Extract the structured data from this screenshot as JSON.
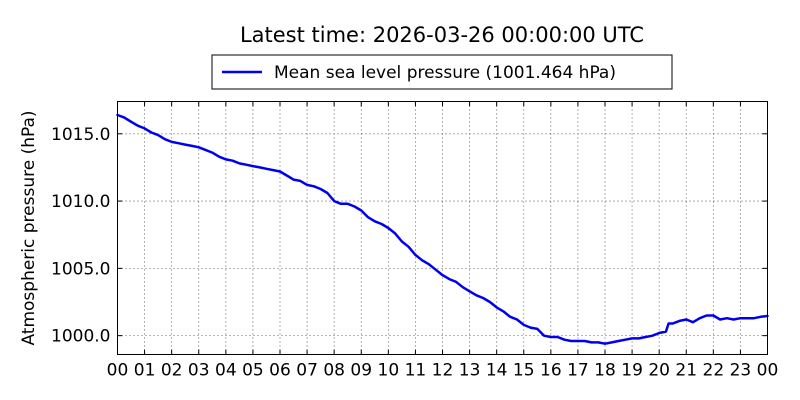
{
  "chart_data": {
    "type": "line",
    "title": "Latest time: 2026-03-26 00:00:00 UTC",
    "ylabel": "Atmospheric pressure (hPa)",
    "xlabel": "",
    "xlim": [
      0,
      24
    ],
    "ylim": [
      998.6,
      1017.4
    ],
    "grid": true,
    "legend_position": "top-center",
    "x_ticks": [
      0,
      1,
      2,
      3,
      4,
      5,
      6,
      7,
      8,
      9,
      10,
      11,
      12,
      13,
      14,
      15,
      16,
      17,
      18,
      19,
      20,
      21,
      22,
      23,
      24
    ],
    "x_tick_labels": [
      "00",
      "01",
      "02",
      "03",
      "04",
      "05",
      "06",
      "07",
      "08",
      "09",
      "10",
      "11",
      "12",
      "13",
      "14",
      "15",
      "16",
      "17",
      "18",
      "19",
      "20",
      "21",
      "22",
      "23",
      "00"
    ],
    "y_ticks": [
      1000.0,
      1005.0,
      1010.0,
      1015.0
    ],
    "y_tick_labels": [
      "1000.0",
      "1005.0",
      "1010.0",
      "1015.0"
    ],
    "series": [
      {
        "name": "Mean sea level pressure (1001.464 hPa)",
        "color": "#0000ee",
        "x": [
          0,
          0.25,
          0.5,
          0.75,
          1,
          1.25,
          1.5,
          1.75,
          2,
          2.25,
          2.5,
          2.75,
          3,
          3.25,
          3.5,
          3.75,
          4,
          4.25,
          4.5,
          4.75,
          5,
          5.25,
          5.5,
          5.75,
          6,
          6.25,
          6.5,
          6.75,
          7,
          7.25,
          7.5,
          7.75,
          8,
          8.25,
          8.5,
          8.75,
          9,
          9.25,
          9.5,
          9.75,
          10,
          10.25,
          10.5,
          10.75,
          11,
          11.25,
          11.5,
          11.75,
          12,
          12.25,
          12.5,
          12.75,
          13,
          13.25,
          13.5,
          13.75,
          14,
          14.25,
          14.5,
          14.75,
          15,
          15.25,
          15.5,
          15.75,
          16,
          16.25,
          16.5,
          16.75,
          17,
          17.25,
          17.5,
          17.75,
          18,
          18.25,
          18.5,
          18.75,
          19,
          19.25,
          19.5,
          19.75,
          20,
          20.25,
          20.35,
          20.5,
          20.75,
          21,
          21.25,
          21.5,
          21.75,
          22,
          22.25,
          22.5,
          22.75,
          23,
          23.25,
          23.5,
          23.75,
          24
        ],
        "y": [
          1016.4,
          1016.2,
          1015.9,
          1015.6,
          1015.4,
          1015.1,
          1014.9,
          1014.6,
          1014.4,
          1014.3,
          1014.2,
          1014.1,
          1014.0,
          1013.8,
          1013.6,
          1013.3,
          1013.1,
          1013.0,
          1012.8,
          1012.7,
          1012.6,
          1012.5,
          1012.4,
          1012.3,
          1012.2,
          1011.9,
          1011.6,
          1011.5,
          1011.2,
          1011.1,
          1010.9,
          1010.6,
          1010.0,
          1009.8,
          1009.8,
          1009.6,
          1009.3,
          1008.8,
          1008.5,
          1008.3,
          1008.0,
          1007.6,
          1007.0,
          1006.6,
          1006.0,
          1005.6,
          1005.3,
          1004.9,
          1004.5,
          1004.2,
          1004.0,
          1003.6,
          1003.3,
          1003.0,
          1002.8,
          1002.5,
          1002.1,
          1001.8,
          1001.4,
          1001.2,
          1000.8,
          1000.6,
          1000.5,
          1000.0,
          999.9,
          999.9,
          999.7,
          999.6,
          999.6,
          999.6,
          999.5,
          999.5,
          999.4,
          999.5,
          999.6,
          999.7,
          999.8,
          999.8,
          999.9,
          1000.0,
          1000.2,
          1000.3,
          1000.9,
          1000.9,
          1001.1,
          1001.2,
          1001.0,
          1001.3,
          1001.5,
          1001.5,
          1001.2,
          1001.3,
          1001.2,
          1001.3,
          1001.3,
          1001.3,
          1001.4,
          1001.46
        ]
      }
    ]
  }
}
